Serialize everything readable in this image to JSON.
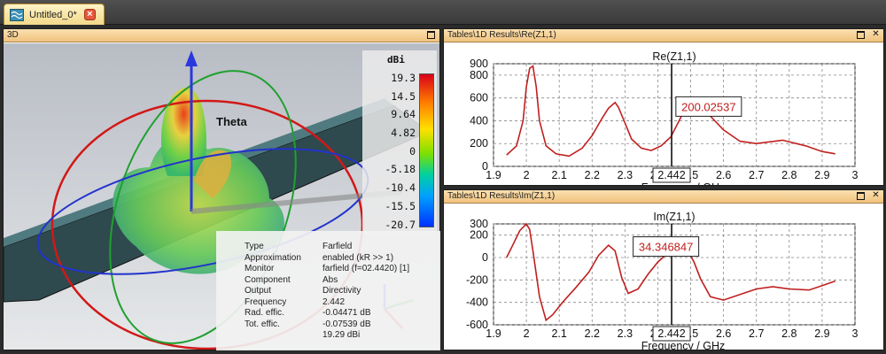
{
  "tab": {
    "label": "Untitled_0*",
    "close_glyph": "×"
  },
  "pane3d": {
    "title": "3D",
    "axis_label": "Theta",
    "legend": {
      "unit": "dBi",
      "values": [
        "19.3",
        "14.5",
        "9.64",
        "4.82",
        "0",
        "-5.18",
        "-10.4",
        "-15.5",
        "-20.7"
      ]
    },
    "info": {
      "rows": [
        {
          "key": "Type",
          "value": "Farfield"
        },
        {
          "key": "Approximation",
          "value": "enabled (kR >> 1)"
        },
        {
          "key": "Monitor",
          "value": "farfield (f=02.4420) [1]"
        },
        {
          "key": "Component",
          "value": "Abs"
        },
        {
          "key": "Output",
          "value": "Directivity"
        },
        {
          "key": "Frequency",
          "value": "2.442"
        },
        {
          "key": "Rad. effic.",
          "value": "-0.04471 dB"
        },
        {
          "key": "Tot. effic.",
          "value": "-0.07539 dB"
        },
        {
          "key": "",
          "value": "19.29 dBi"
        }
      ]
    }
  },
  "colors": {
    "curve": "#c0201e",
    "title_bar": "#f0c27e",
    "accent": "#e55a3c"
  },
  "chart_data": [
    {
      "type": "line",
      "panel_title": "Tables\\1D Results\\Re(Z1,1)",
      "title": "Re(Z1,1)",
      "xlabel": "Frequency / GHz",
      "ylabel": "",
      "xlim": [
        1.9,
        3.0
      ],
      "ylim": [
        0,
        900
      ],
      "x_ticks": [
        "1.9",
        "2",
        "2.1",
        "2.2",
        "2.3",
        "2.4",
        "2.5",
        "2.6",
        "2.7",
        "2.8",
        "2.9",
        "3"
      ],
      "y_ticks": [
        "900",
        "800",
        "600",
        "400",
        "200",
        "0"
      ],
      "y_tick_values": [
        900,
        800,
        600,
        400,
        200,
        0
      ],
      "marker": {
        "x": 2.442,
        "x_label": "2.442",
        "value": "200.02537"
      },
      "series": [
        {
          "x": [
            1.94,
            1.97,
            1.99,
            2.0,
            2.01,
            2.02,
            2.03,
            2.04,
            2.06,
            2.09,
            2.13,
            2.17,
            2.2,
            2.23,
            2.25,
            2.27,
            2.28,
            2.3,
            2.32,
            2.35,
            2.38,
            2.41,
            2.44,
            2.47,
            2.49,
            2.51,
            2.53,
            2.55,
            2.6,
            2.65,
            2.7,
            2.78,
            2.85,
            2.9,
            2.94
          ],
          "y": [
            100,
            180,
            400,
            700,
            860,
            880,
            700,
            400,
            180,
            110,
            90,
            160,
            270,
            420,
            510,
            560,
            520,
            380,
            240,
            160,
            140,
            180,
            260,
            430,
            540,
            590,
            550,
            470,
            320,
            220,
            200,
            230,
            180,
            130,
            110
          ]
        }
      ]
    },
    {
      "type": "line",
      "panel_title": "Tables\\1D Results\\Im(Z1,1)",
      "title": "Im(Z1,1)",
      "xlabel": "Frequency / GHz",
      "ylabel": "",
      "xlim": [
        1.9,
        3.0
      ],
      "ylim": [
        -600,
        300
      ],
      "x_ticks": [
        "1.9",
        "2",
        "2.1",
        "2.2",
        "2.3",
        "2.4",
        "2.5",
        "2.6",
        "2.7",
        "2.8",
        "2.9",
        "3"
      ],
      "y_ticks": [
        "300",
        "200",
        "0",
        "-200",
        "-400",
        "-600"
      ],
      "y_tick_values": [
        300,
        200,
        0,
        -200,
        -400,
        -600
      ],
      "marker": {
        "x": 2.442,
        "x_label": "2.442",
        "value": "34.346847"
      },
      "series": [
        {
          "x": [
            1.94,
            1.96,
            1.98,
            2.0,
            2.01,
            2.02,
            2.04,
            2.06,
            2.08,
            2.11,
            2.15,
            2.19,
            2.22,
            2.25,
            2.27,
            2.29,
            2.31,
            2.34,
            2.37,
            2.4,
            2.43,
            2.45,
            2.47,
            2.49,
            2.51,
            2.53,
            2.56,
            2.6,
            2.65,
            2.7,
            2.75,
            2.8,
            2.86,
            2.9,
            2.94
          ],
          "y": [
            0,
            120,
            240,
            300,
            250,
            60,
            -350,
            -560,
            -510,
            -400,
            -270,
            -130,
            20,
            110,
            60,
            -180,
            -320,
            -280,
            -150,
            -40,
            40,
            90,
            110,
            70,
            -40,
            -190,
            -350,
            -380,
            -330,
            -280,
            -260,
            -280,
            -290,
            -250,
            -210
          ]
        }
      ]
    }
  ]
}
